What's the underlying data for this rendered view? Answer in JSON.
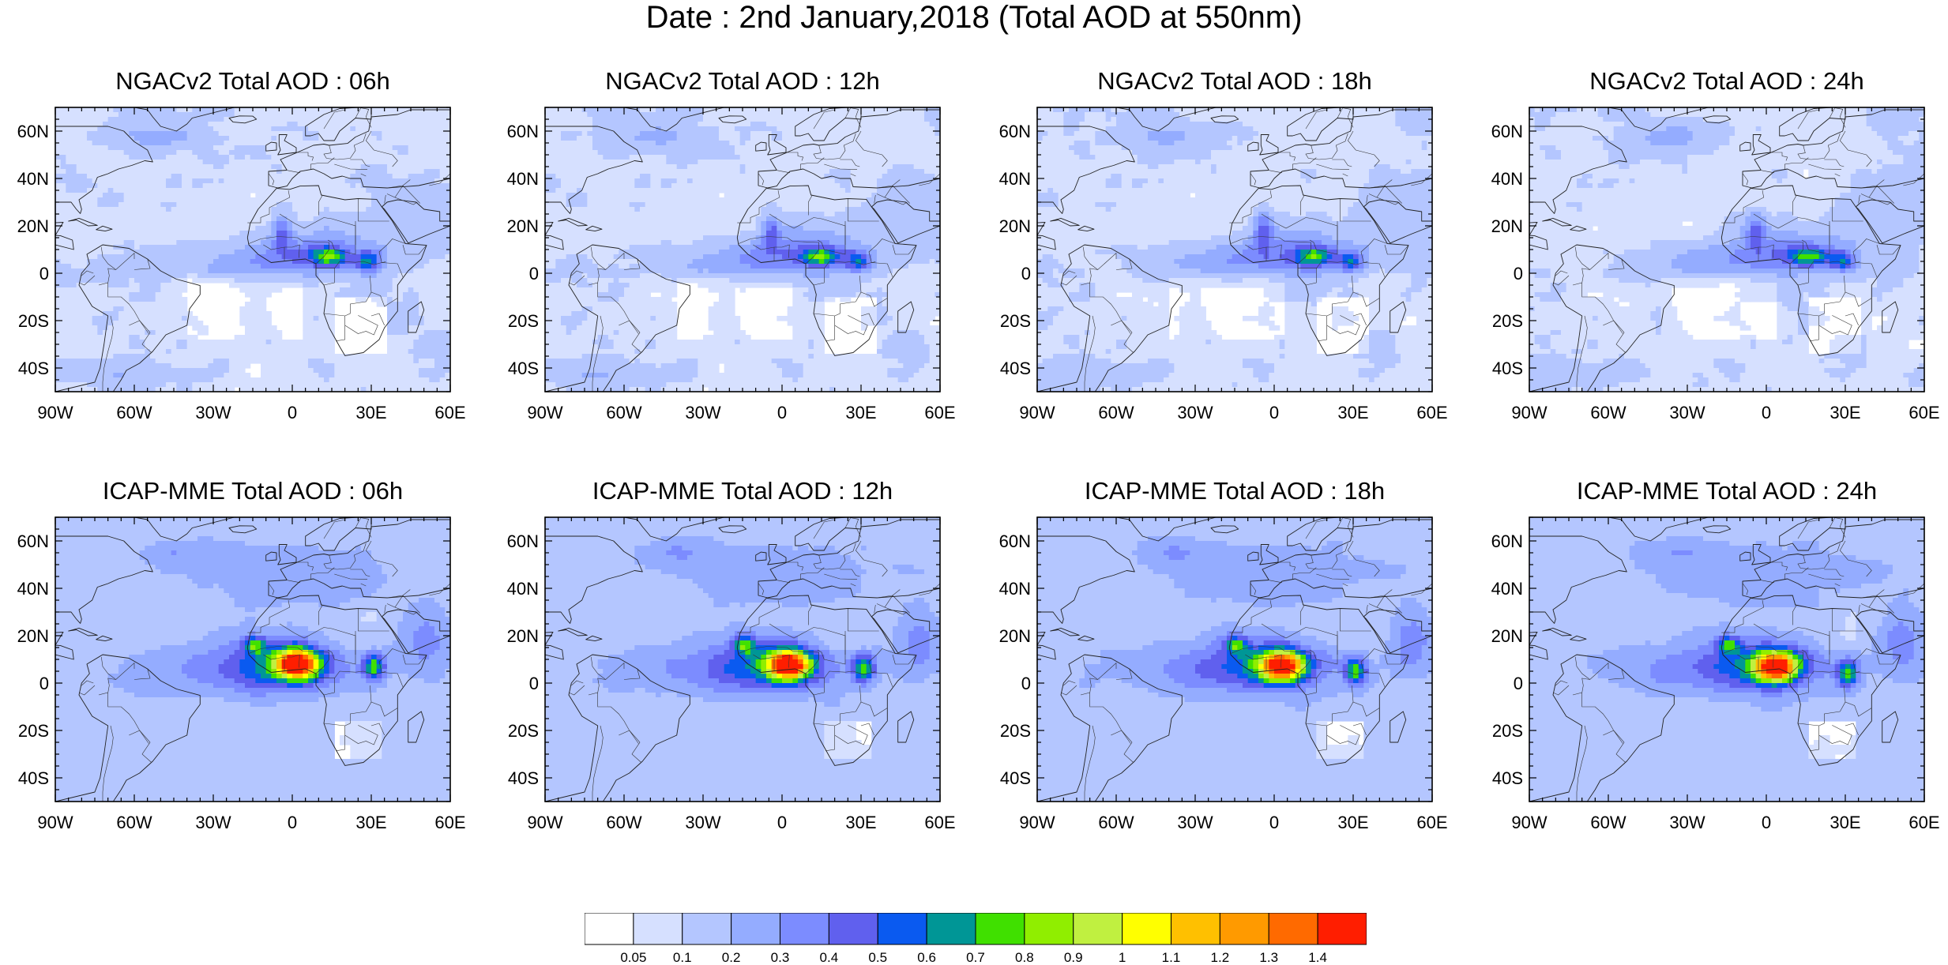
{
  "title": "Date : 2nd January,2018 (Total AOD at 550nm)",
  "panels": [
    {
      "title": "NGACv2 Total AOD : 06h",
      "model": "NGACv2",
      "lead": "06h"
    },
    {
      "title": "NGACv2 Total AOD : 12h",
      "model": "NGACv2",
      "lead": "12h"
    },
    {
      "title": "NGACv2 Total AOD : 18h",
      "model": "NGACv2",
      "lead": "18h"
    },
    {
      "title": "NGACv2 Total AOD : 24h",
      "model": "NGACv2",
      "lead": "24h"
    },
    {
      "title": "ICAP-MME Total AOD : 06h",
      "model": "ICAP-MME",
      "lead": "06h"
    },
    {
      "title": "ICAP-MME Total AOD : 12h",
      "model": "ICAP-MME",
      "lead": "12h"
    },
    {
      "title": "ICAP-MME Total AOD : 18h",
      "model": "ICAP-MME",
      "lead": "18h"
    },
    {
      "title": "ICAP-MME Total AOD : 24h",
      "model": "ICAP-MME",
      "lead": "24h"
    }
  ],
  "map_extent": {
    "lon_min": -90,
    "lon_max": 60,
    "lat_min": -50,
    "lat_max": 70
  },
  "lat_ticks": [
    {
      "value": 60,
      "label": "60N"
    },
    {
      "value": 40,
      "label": "40N"
    },
    {
      "value": 20,
      "label": "20N"
    },
    {
      "value": 0,
      "label": "0"
    },
    {
      "value": -20,
      "label": "20S"
    },
    {
      "value": -40,
      "label": "40S"
    }
  ],
  "lon_ticks": [
    {
      "value": -90,
      "label": "90W"
    },
    {
      "value": -60,
      "label": "60W"
    },
    {
      "value": -30,
      "label": "30W"
    },
    {
      "value": 0,
      "label": "0"
    },
    {
      "value": 30,
      "label": "30E"
    },
    {
      "value": 60,
      "label": "60E"
    }
  ],
  "colorbar": {
    "labels": [
      "0.05",
      "0.1",
      "0.2",
      "0.3",
      "0.4",
      "0.5",
      "0.6",
      "0.7",
      "0.8",
      "0.9",
      "1",
      "1.1",
      "1.2",
      "1.3",
      "1.4"
    ],
    "colors": [
      "#ffffff",
      "#d6e0ff",
      "#b4c6ff",
      "#94acff",
      "#7c8cff",
      "#6060ee",
      "#0a5af0",
      "#009696",
      "#40e000",
      "#90ee00",
      "#c0f040",
      "#ffff00",
      "#ffc000",
      "#ff9a00",
      "#ff6a00",
      "#ff1e00"
    ]
  }
}
